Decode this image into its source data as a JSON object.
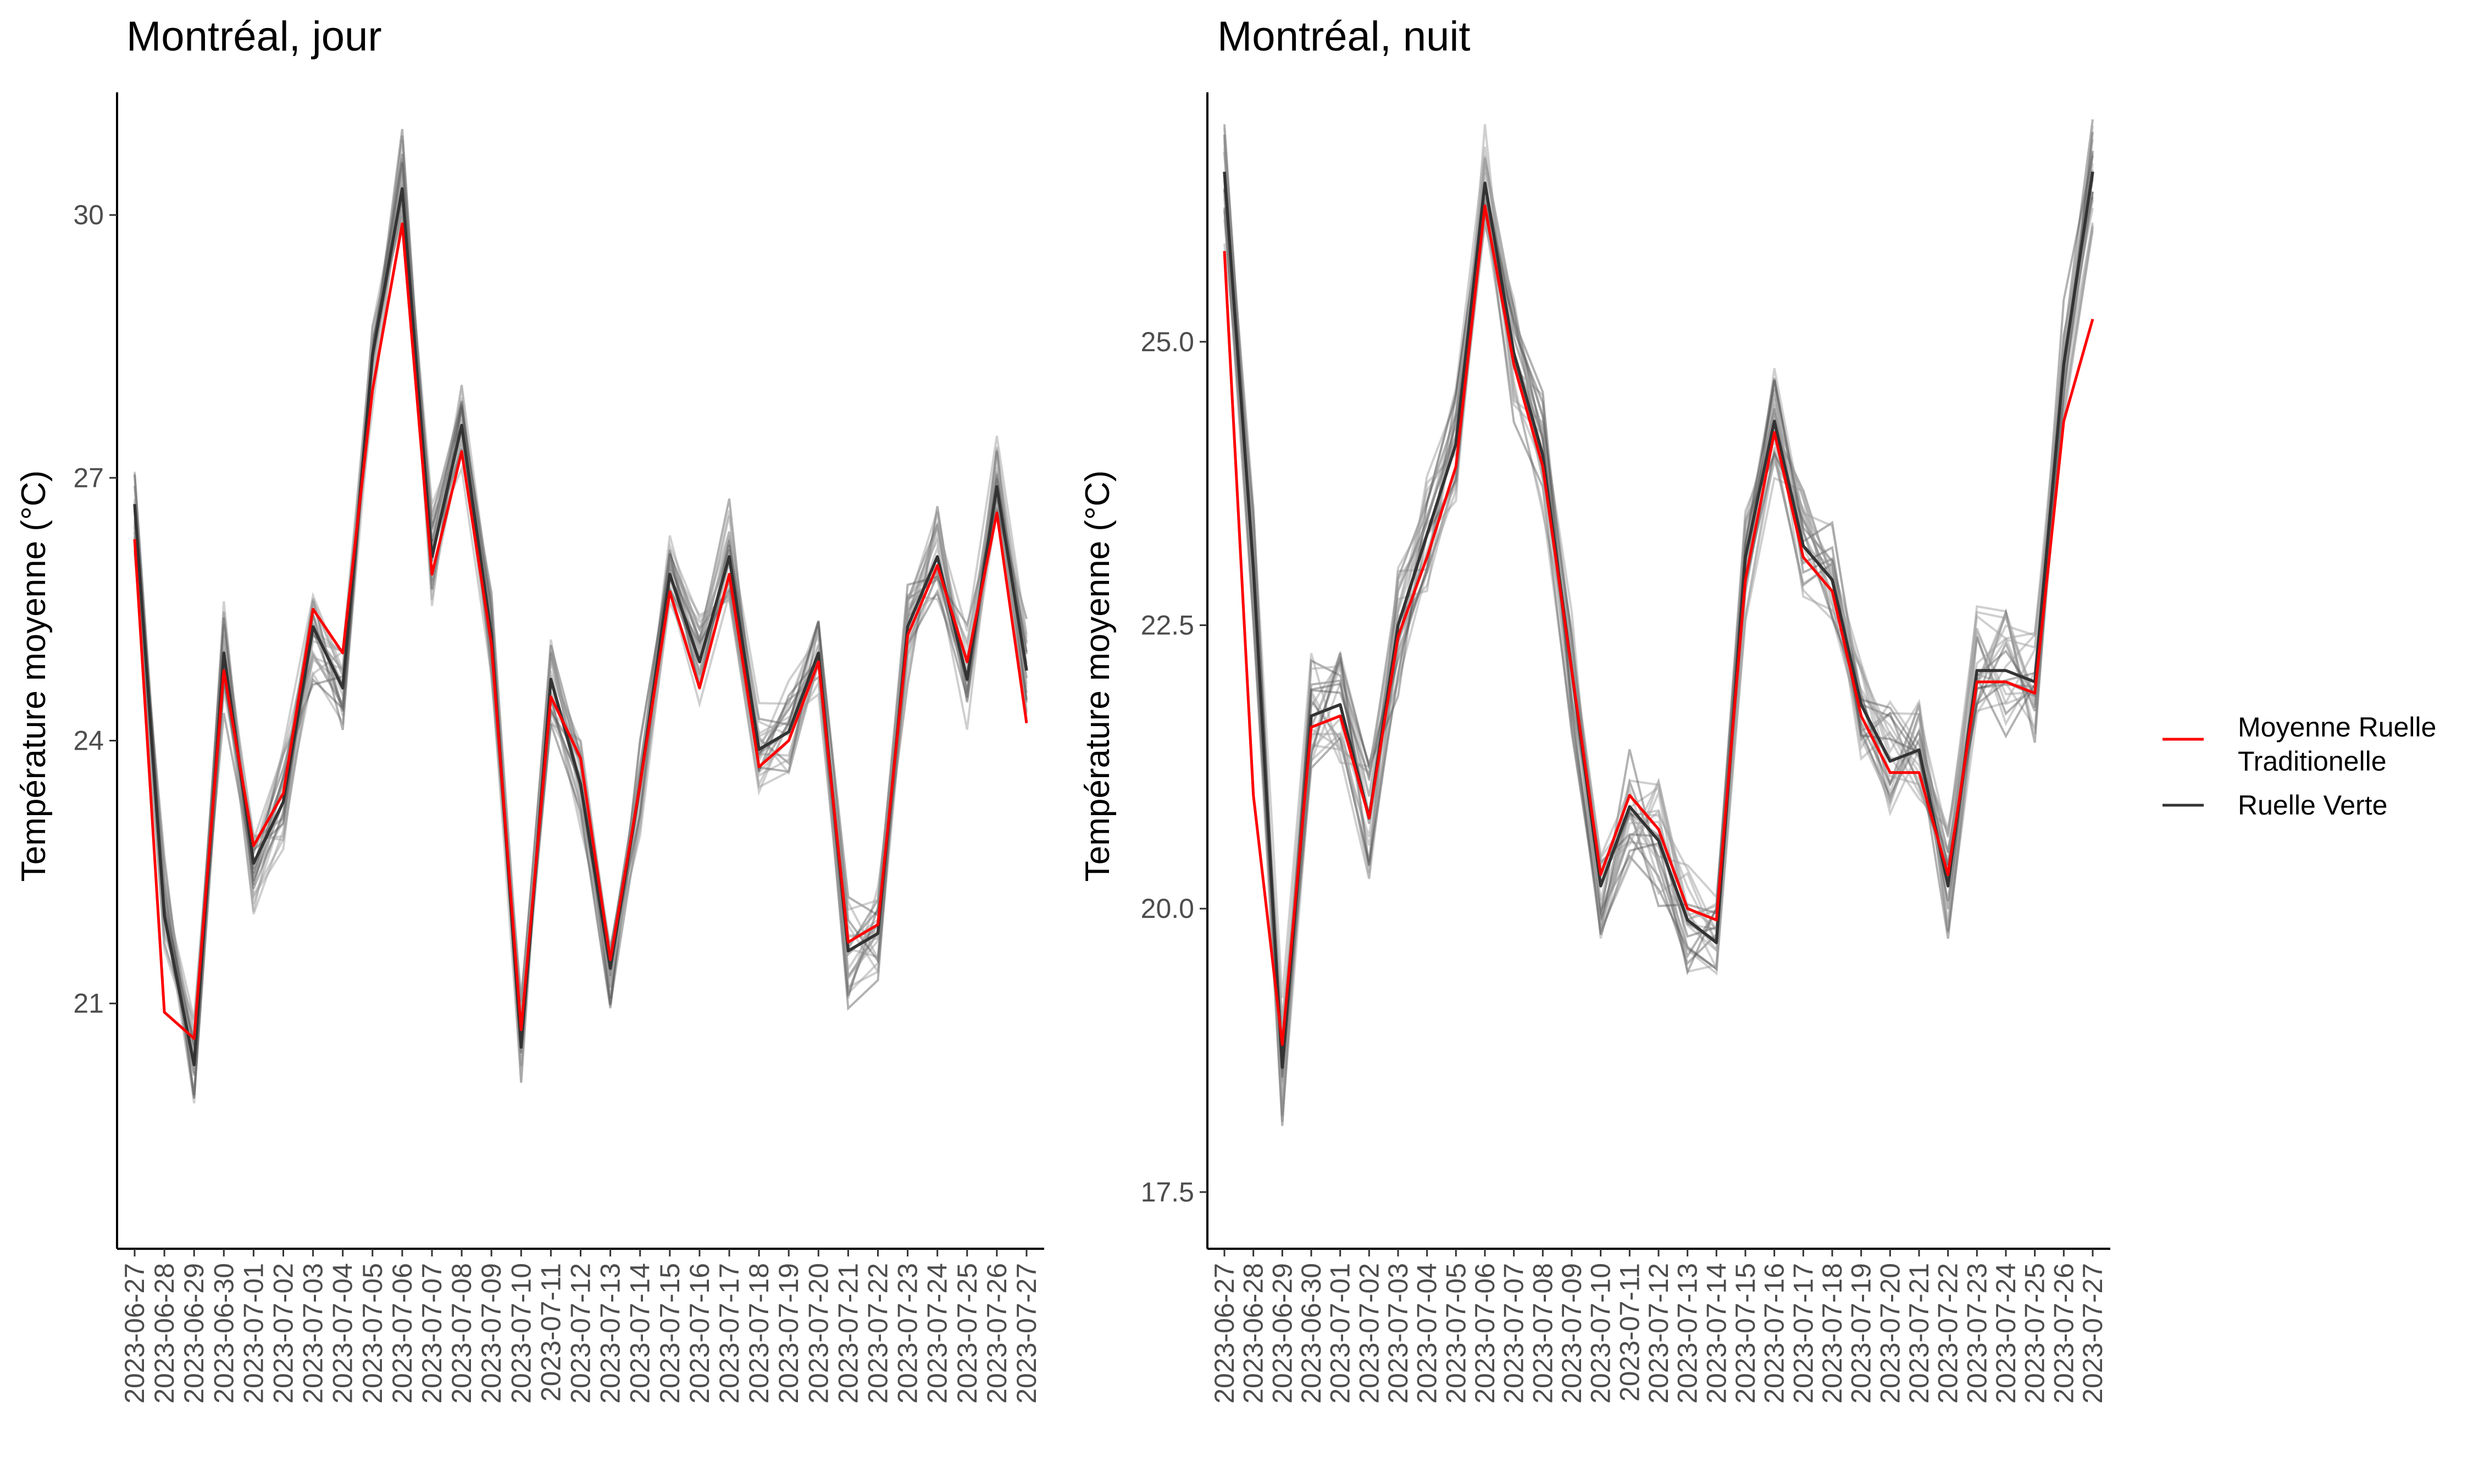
{
  "chart_data": [
    {
      "type": "line",
      "title": "Montréal, jour",
      "xlabel": "",
      "ylabel": "Température moyenne (°C)",
      "yticks": [
        21,
        24,
        27,
        30
      ],
      "ylim": [
        18.2,
        31.4
      ],
      "grid": false,
      "x": [
        "2023-06-27",
        "2023-06-28",
        "2023-06-29",
        "2023-06-30",
        "2023-07-01",
        "2023-07-02",
        "2023-07-03",
        "2023-07-04",
        "2023-07-05",
        "2023-07-06",
        "2023-07-07",
        "2023-07-08",
        "2023-07-09",
        "2023-07-10",
        "2023-07-11",
        "2023-07-12",
        "2023-07-13",
        "2023-07-14",
        "2023-07-15",
        "2023-07-16",
        "2023-07-17",
        "2023-07-18",
        "2023-07-19",
        "2023-07-20",
        "2023-07-21",
        "2023-07-22",
        "2023-07-23",
        "2023-07-24",
        "2023-07-25",
        "2023-07-26",
        "2023-07-27"
      ],
      "series": [
        {
          "name": "Moyenne Ruelle Traditionelle",
          "color": "#ff0000",
          "values": [
            26.3,
            20.9,
            20.6,
            24.8,
            22.8,
            23.4,
            25.5,
            25.0,
            28.0,
            29.9,
            25.9,
            27.3,
            25.1,
            20.7,
            24.5,
            23.8,
            21.5,
            23.5,
            25.7,
            24.6,
            25.9,
            23.7,
            24.0,
            24.9,
            21.7,
            21.9,
            25.2,
            26.0,
            24.9,
            26.6,
            24.2
          ]
        },
        {
          "name": "Ruelle Verte",
          "color": "#333333",
          "values": [
            26.7,
            22.0,
            20.3,
            25.0,
            22.6,
            23.3,
            25.3,
            24.6,
            28.4,
            30.3,
            26.1,
            27.6,
            25.2,
            20.5,
            24.7,
            23.5,
            21.4,
            23.5,
            25.9,
            24.9,
            26.1,
            23.9,
            24.1,
            25.0,
            21.6,
            21.8,
            25.3,
            26.1,
            24.7,
            26.9,
            24.8
          ]
        }
      ]
    },
    {
      "type": "line",
      "title": "Montréal, nuit",
      "xlabel": "",
      "ylabel": "Température moyenne (°C)",
      "yticks": [
        17.5,
        20.0,
        22.5,
        25.0
      ],
      "ylim": [
        17.0,
        27.2
      ],
      "grid": false,
      "x": [
        "2023-06-27",
        "2023-06-28",
        "2023-06-29",
        "2023-06-30",
        "2023-07-01",
        "2023-07-02",
        "2023-07-03",
        "2023-07-04",
        "2023-07-05",
        "2023-07-06",
        "2023-07-07",
        "2023-07-08",
        "2023-07-09",
        "2023-07-10",
        "2023-07-11",
        "2023-07-12",
        "2023-07-13",
        "2023-07-14",
        "2023-07-15",
        "2023-07-16",
        "2023-07-17",
        "2023-07-18",
        "2023-07-19",
        "2023-07-20",
        "2023-07-21",
        "2023-07-22",
        "2023-07-23",
        "2023-07-24",
        "2023-07-25",
        "2023-07-26",
        "2023-07-27"
      ],
      "series": [
        {
          "name": "Moyenne Ruelle Traditionelle",
          "color": "#ff0000",
          "values": [
            25.8,
            21.0,
            18.8,
            21.6,
            21.7,
            20.8,
            22.4,
            23.1,
            23.9,
            26.2,
            24.8,
            23.9,
            22.1,
            20.3,
            21.0,
            20.7,
            20.0,
            19.9,
            22.9,
            24.2,
            23.1,
            22.8,
            21.7,
            21.2,
            21.2,
            20.3,
            22.0,
            22.0,
            21.9,
            24.3,
            25.2
          ]
        },
        {
          "name": "Ruelle Verte",
          "color": "#333333",
          "values": [
            26.5,
            23.0,
            18.6,
            21.7,
            21.8,
            20.8,
            22.5,
            23.3,
            24.1,
            26.4,
            24.9,
            24.0,
            22.1,
            20.2,
            20.9,
            20.6,
            19.9,
            19.7,
            23.1,
            24.3,
            23.2,
            22.9,
            21.8,
            21.3,
            21.4,
            20.2,
            22.1,
            22.1,
            22.0,
            24.8,
            26.5
          ]
        }
      ]
    }
  ],
  "legend": {
    "placement": "right",
    "items": [
      {
        "label": "Moyenne Ruelle Traditionelle",
        "label_lines": [
          "Moyenne Ruelle",
          "Traditionelle"
        ],
        "color": "#ff0000"
      },
      {
        "label": "Ruelle Verte",
        "label_lines": [
          "Ruelle Verte"
        ],
        "color": "#333333"
      }
    ]
  }
}
